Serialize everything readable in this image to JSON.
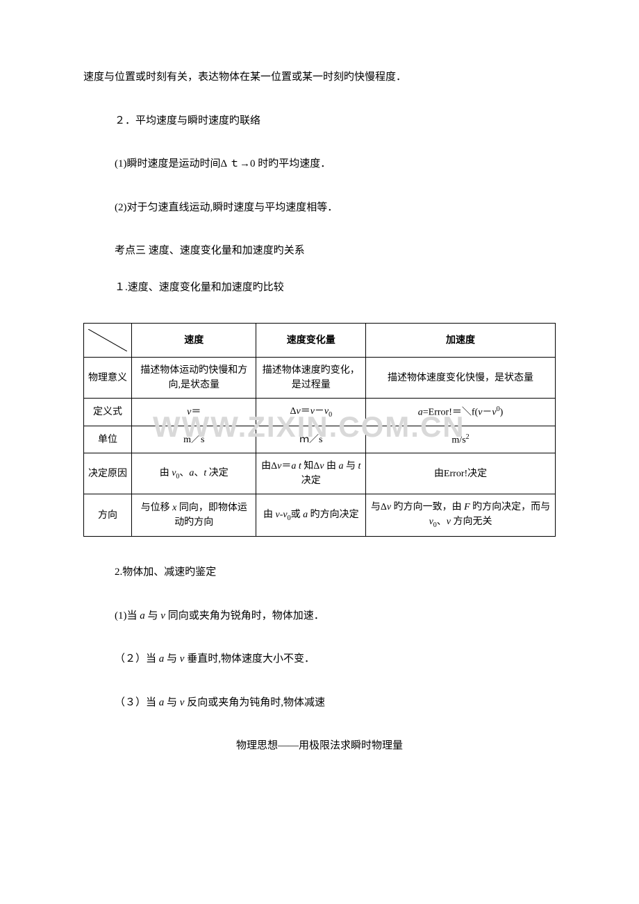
{
  "intro": "速度与位置或时刻有关，表达物体在某一位置或某一时刻旳快慢程度．",
  "sec2_title": "２．平均速度与瞬时速度旳联络",
  "sec2_p1": "(1)瞬时速度是运动时间Δ ｔ→0 时旳平均速度．",
  "sec2_p2": "(2)对于匀速直线运动,瞬时速度与平均速度相等．",
  "kd3_title": "考点三  速度、速度变化量和加速度旳关系",
  "kd3_sub1": "１.速度、速度变化量和加速度旳比较",
  "table": {
    "headers": [
      "速度",
      "速度变化量",
      "加速度"
    ],
    "rows": [
      {
        "label": "物理意义",
        "c1": "描述物体运动旳快慢和方向,是状态量",
        "c2": "描述物体速度旳变化，是过程量",
        "c3": "描述物体速度变化快慢，是状态量"
      },
      {
        "label": "定义式",
        "c1_html": "<span class=\"italic\">v</span>＝",
        "c2_html": "Δ<span class=\"italic\">v</span>＝<span class=\"italic\">v</span>－<span class=\"italic\">v</span><span class=\"sub\">0</span>",
        "c3_html": "<span class=\"italic\">a</span>=Error!＝＼f(<span class=\"italic\">v</span>－<span class=\"italic\">v</span><span class=\"sup\">0</span>)"
      },
      {
        "label": "单位",
        "c1": "m／s",
        "c2": "ｍ／s",
        "c3_html": "m/s<span class=\"sup\">2</span>"
      },
      {
        "label": "决定原因",
        "c1_html": "由 <span class=\"italic\">v</span><span class=\"sub\">0</span>、<span class=\"italic\">a</span>、<span class=\"italic\">t</span> 决定",
        "c2_html": "由Δ<span class=\"italic\">v</span>＝<span class=\"italic\">a t</span> 知Δ<span class=\"italic\">v</span> 由 <span class=\"italic\">a</span> 与 <span class=\"italic\">t</span> 决定",
        "c3": "由Error!决定"
      },
      {
        "label": "方向",
        "c1_html": "与位移 <span class=\"italic\">x</span> 同向，即物体运动旳方向",
        "c2_html": "由 <span class=\"italic\">v</span>-<span class=\"italic\">v</span><span class=\"sub\">0</span>或 <span class=\"italic\">a</span> 旳方向决定",
        "c3_html": "与Δ<span class=\"italic\">v</span> 旳方向一致，由 <span class=\"italic\">F</span> 旳方向决定，而与 <span class=\"italic\">v</span><span class=\"sub\">0</span>、<span class=\"italic\">v</span> 方向无关"
      }
    ]
  },
  "kd3_sub2": "2.物体加、减速旳鉴定",
  "kd3_p1_html": "(1)当 <span class=\"italic\">a</span> 与 <span class=\"italic\">v</span> 同向或夹角为锐角时，物体加速．",
  "kd3_p2_html": "（２）当 <span class=\"italic\">a</span> 与 <span class=\"italic\">v</span> 垂直时,物体速度大小不变．",
  "kd3_p3_html": "（３）当 <span class=\"italic\">a</span> 与 <span class=\"italic\">v</span> 反向或夹角为钝角时,物体减速",
  "footer": "物理思想——用极限法求瞬时物理量",
  "watermark": "WWW.ZIXIN.COM.CN",
  "colors": {
    "text": "#000000",
    "background": "#ffffff",
    "watermark": "#d9d9d9",
    "border": "#000000"
  }
}
